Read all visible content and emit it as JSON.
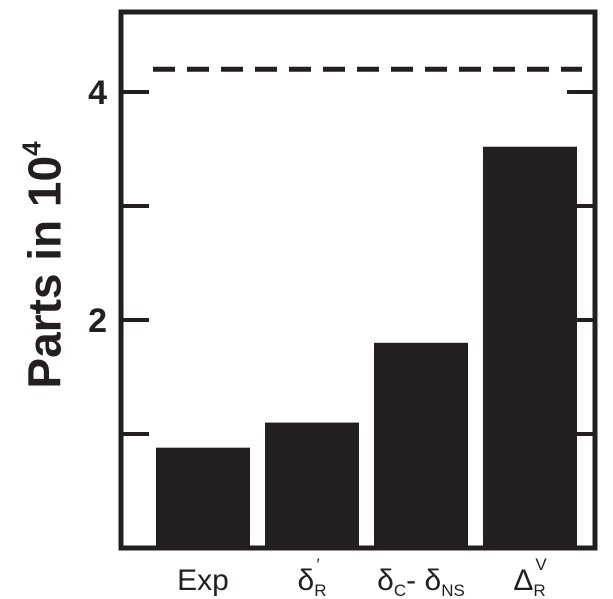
{
  "chart_data": {
    "type": "bar",
    "categories": [
      {
        "label": "Exp",
        "main": "Exp",
        "sub": "",
        "sup": ""
      },
      {
        "label": "δ′R",
        "main": "δ",
        "sub": "R",
        "sup": "′"
      },
      {
        "label": "δC- δNS",
        "main": "δ",
        "sub": "C",
        "main2": "- δ",
        "sub2": "NS"
      },
      {
        "label": "ΔVR",
        "main": "Δ",
        "sub": "R",
        "sup": "V"
      }
    ],
    "values": [
      0.88,
      1.1,
      1.8,
      3.52
    ],
    "reference_line": {
      "value": 4.2,
      "style": "dashed"
    },
    "ylabel": "Parts in 10",
    "ylabel_sup": "4",
    "ylim": [
      0,
      4.7
    ],
    "yticks": [
      {
        "value": 1,
        "label": ""
      },
      {
        "value": 2,
        "label": "2"
      },
      {
        "value": 3,
        "label": ""
      },
      {
        "value": 4,
        "label": "4"
      }
    ],
    "grid": false,
    "colors": {
      "bar": "#231f20",
      "axis": "#231f20",
      "background": "#ffffff"
    }
  }
}
